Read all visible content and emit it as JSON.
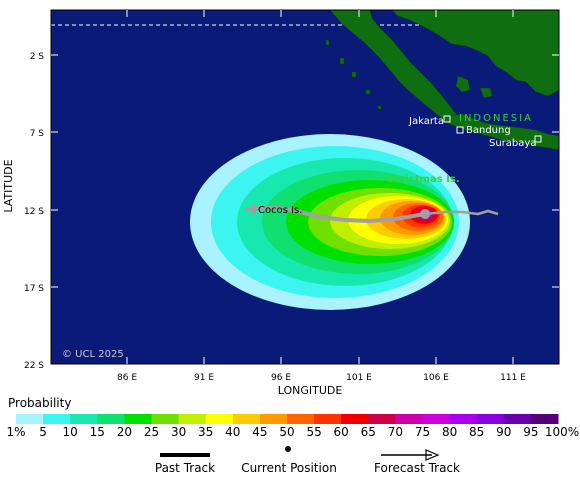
{
  "map": {
    "yaxis_label": "LATITUDE",
    "xaxis_label": "LONGITUDE",
    "lat_ticks": [
      "2 S",
      "7 S",
      "12 S",
      "17 S",
      "22 S"
    ],
    "lon_ticks": [
      "86 E",
      "91 E",
      "96 E",
      "101 E",
      "106 E",
      "111 E"
    ],
    "copyright": "© UCL 2025",
    "places": {
      "country": "INDONESIA",
      "jakarta": "Jakarta",
      "bandung": "Bandung",
      "surabaya": "Surabaya",
      "christmas": "Christmas Is.",
      "cocos": "Cocos Is."
    },
    "colors": {
      "ocean": "#0a1a78",
      "land": "#0f6e10",
      "track": "#a0a0a0",
      "place_label": "#ffffff",
      "island_label": "#3ad13a"
    }
  },
  "legend": {
    "title": "Probability",
    "labels": [
      "1%",
      "5",
      "10",
      "15",
      "20",
      "25",
      "30",
      "35",
      "40",
      "45",
      "50",
      "55",
      "60",
      "65",
      "70",
      "75",
      "80",
      "85",
      "90",
      "95",
      "100%"
    ],
    "colors": [
      "#a9f3ff",
      "#3cf5f0",
      "#18e8b0",
      "#10e070",
      "#00e000",
      "#70e000",
      "#c0f000",
      "#ffff00",
      "#ffcc00",
      "#ff9900",
      "#ff6600",
      "#ff3300",
      "#ee0000",
      "#cc0044",
      "#cc00aa",
      "#cc00dd",
      "#aa00ee",
      "#8800dd",
      "#6600aa",
      "#550077"
    ]
  },
  "key": {
    "past_track": "Past Track",
    "current_position": "Current Position",
    "forecast_track": "Forecast Track"
  }
}
